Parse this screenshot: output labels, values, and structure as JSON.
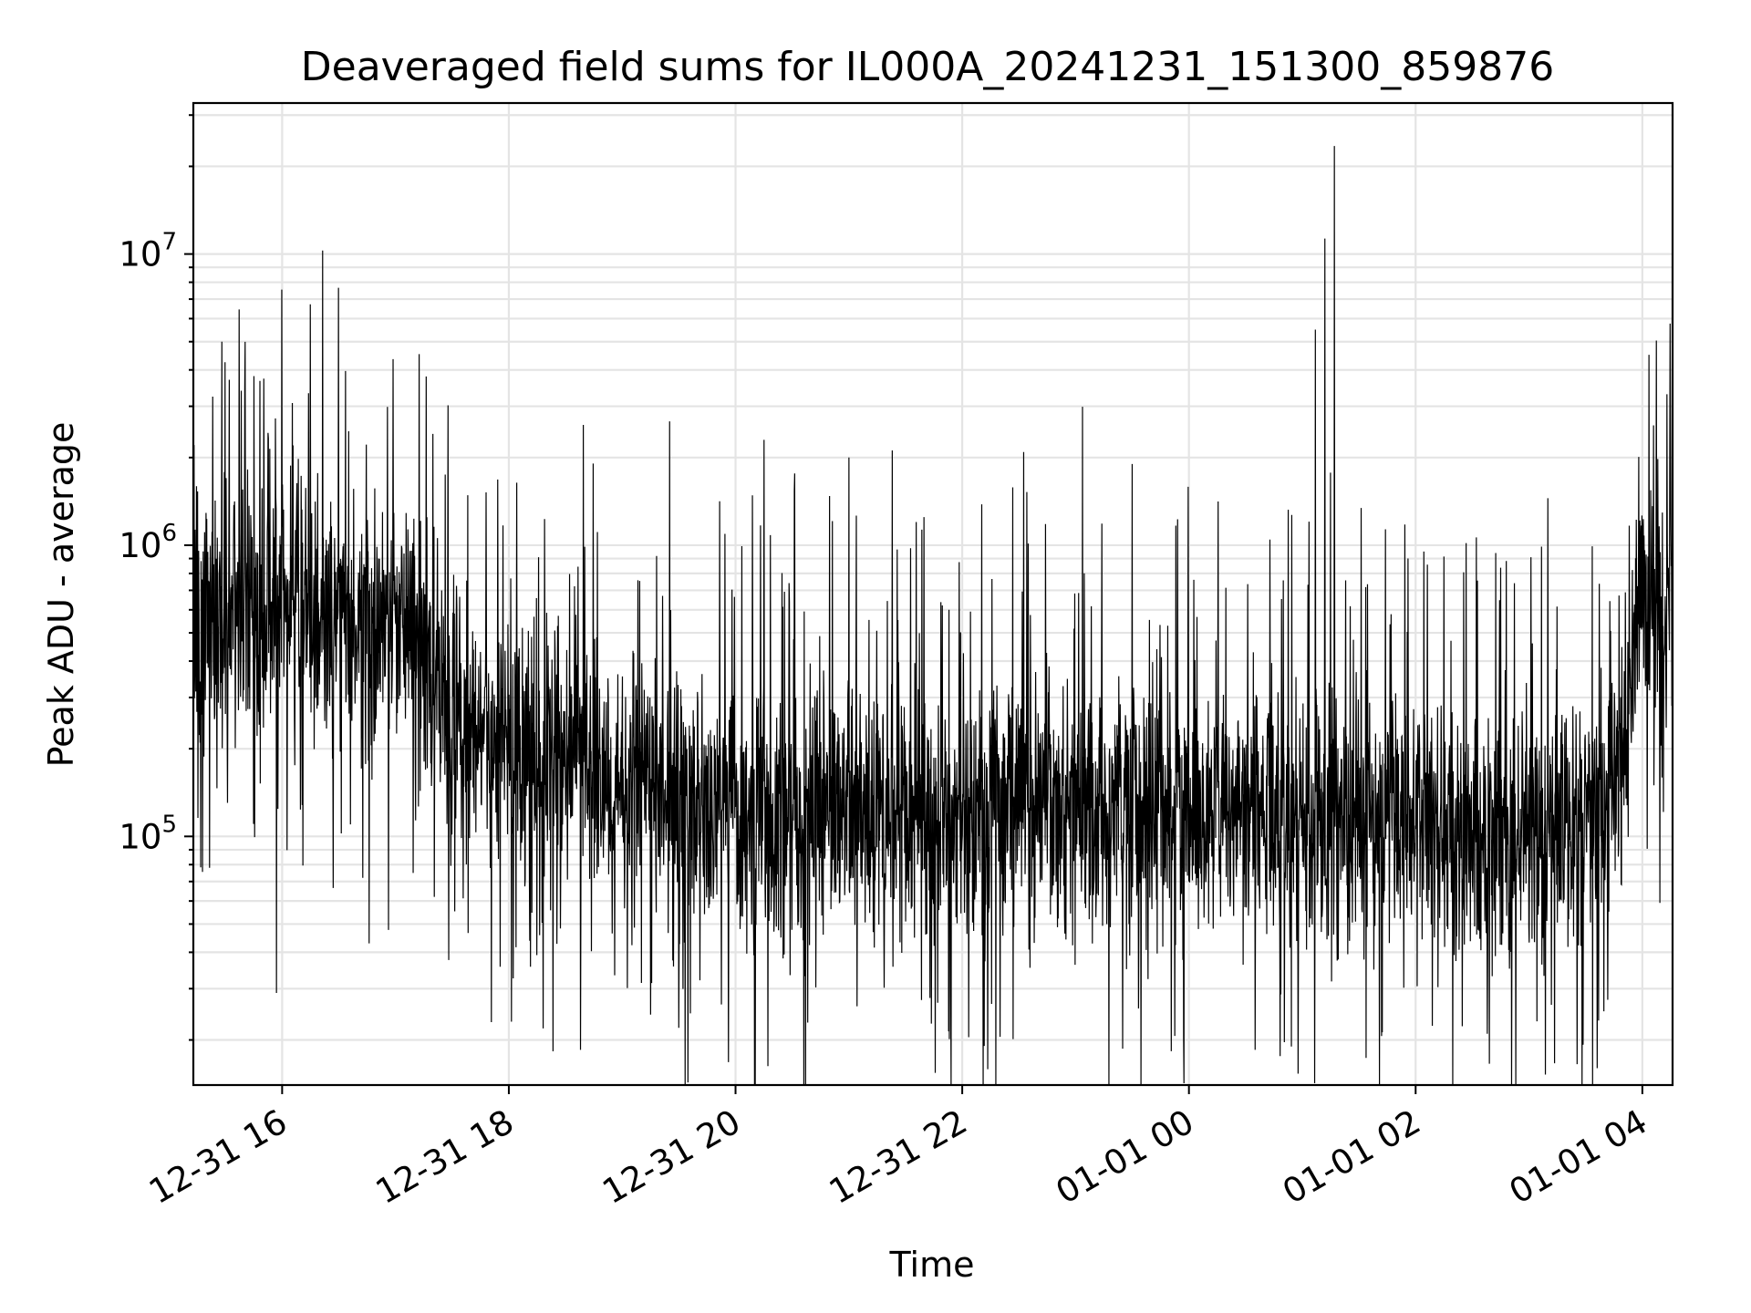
{
  "chart_data": {
    "type": "line",
    "title": "Deaveraged field sums for IL000A_20241231_151300_859876",
    "xlabel": "Time",
    "ylabel": "Peak ADU - average",
    "x_tick_labels": [
      "12-31 16",
      "12-31 18",
      "12-31 20",
      "12-31 22",
      "01-01 00",
      "01-01 02",
      "01-01 04"
    ],
    "x_ticks": [
      "2024-12-31 16:00",
      "2024-12-31 18:00",
      "2024-12-31 20:00",
      "2024-12-31 22:00",
      "2025-01-01 00:00",
      "2025-01-01 02:00",
      "2025-01-01 04:00"
    ],
    "xlim": [
      "2024-12-31 15:13",
      "2025-01-01 04:16"
    ],
    "y_scale": "log",
    "ylim": [
      14000,
      33000000
    ],
    "y_tick_labels": [
      {
        "base": "10",
        "exp": "5",
        "value": 100000
      },
      {
        "base": "10",
        "exp": "6",
        "value": 1000000
      },
      {
        "base": "10",
        "exp": "7",
        "value": 10000000
      }
    ],
    "grid": true,
    "legend": "none",
    "line_color": "#000000",
    "series": [
      {
        "values_note": "approximate envelope of a dense noisy time series; log10 of value at key times",
        "x": [
          "2024-12-31 15:13",
          "2024-12-31 15:30",
          "2024-12-31 16:00",
          "2024-12-31 16:30",
          "2024-12-31 17:00",
          "2024-12-31 17:15",
          "2024-12-31 17:30",
          "2024-12-31 18:00",
          "2024-12-31 18:30",
          "2024-12-31 19:00",
          "2024-12-31 19:30",
          "2024-12-31 20:00",
          "2024-12-31 20:30",
          "2024-12-31 21:00",
          "2024-12-31 21:30",
          "2024-12-31 22:00",
          "2024-12-31 22:30",
          "2024-12-31 23:00",
          "2024-12-31 23:30",
          "2025-01-01 00:00",
          "2025-01-01 00:30",
          "2025-01-01 01:00",
          "2025-01-01 01:30",
          "2025-01-01 02:00",
          "2025-01-01 02:30",
          "2025-01-01 03:00",
          "2025-01-01 03:30",
          "2025-01-01 03:45",
          "2025-01-01 04:00",
          "2025-01-01 04:16"
        ],
        "values": [
          400000,
          600000,
          650000,
          550000,
          500000,
          450000,
          250000,
          200000,
          180000,
          150000,
          140000,
          120000,
          110000,
          125000,
          130000,
          120000,
          130000,
          130000,
          125000,
          120000,
          130000,
          110000,
          110000,
          110000,
          105000,
          110000,
          110000,
          130000,
          700000,
          550000
        ]
      }
    ],
    "spikes": [
      {
        "x": "2024-12-31 15:32",
        "value": 3700000
      },
      {
        "x": "2024-12-31 20:15",
        "value": 2300000
      },
      {
        "x": "2024-12-31 21:00",
        "value": 2000000
      },
      {
        "x": "2024-12-31 23:30",
        "value": 1900000
      },
      {
        "x": "2025-01-01 01:07",
        "value": 5500000
      },
      {
        "x": "2025-01-01 01:12",
        "value": 11300000
      },
      {
        "x": "2025-01-01 01:17",
        "value": 23500000
      },
      {
        "x": "2025-01-01 03:10",
        "value": 1450000
      },
      {
        "x": "2025-01-01 04:13",
        "value": 3300000
      }
    ],
    "dips": [
      {
        "x": "2024-12-31 15:57",
        "value": 29000
      },
      {
        "x": "2024-12-31 18:38",
        "value": 18500
      },
      {
        "x": "2024-12-31 19:30",
        "value": 22000
      },
      {
        "x": "2024-12-31 22:20",
        "value": 20500
      },
      {
        "x": "2025-01-01 00:35",
        "value": 18500
      },
      {
        "x": "2025-01-01 02:38",
        "value": 21000
      }
    ]
  }
}
